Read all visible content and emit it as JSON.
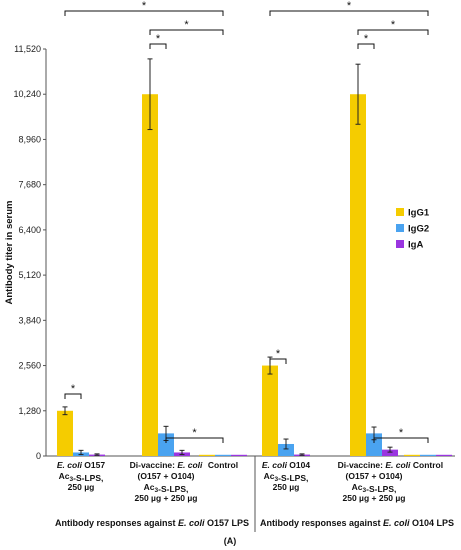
{
  "chart_data": {
    "type": "bar",
    "ylabel": "Antibody titer in serum",
    "ylim": [
      0,
      11520
    ],
    "yticks": [
      "0",
      "1,280",
      "2,560",
      "3,840",
      "5,120",
      "6,400",
      "7,680",
      "8,960",
      "10,240",
      "11,520"
    ],
    "ytick_values": [
      0,
      1280,
      2560,
      3840,
      5120,
      6400,
      7680,
      8960,
      10240,
      11520
    ],
    "panel_label": "(A)",
    "legend_position": "right",
    "grid": false,
    "series": [
      {
        "name": "IgG1",
        "color": "#f5cc00"
      },
      {
        "name": "IgG2",
        "color": "#4aa3f0"
      },
      {
        "name": "IgA",
        "color": "#9a35e0"
      }
    ],
    "groups": [
      {
        "label_parts": [
          {
            "t": "Antibody responses against ",
            "i": false
          },
          {
            "t": "E. coli",
            "i": true
          },
          {
            "t": " O157 LPS",
            "i": false
          }
        ],
        "categories": [
          {
            "lines": [
              [
                {
                  "t": "E. coli",
                  "i": true
                },
                {
                  "t": " O157",
                  "i": false
                }
              ],
              [
                {
                  "t": "Ac",
                  "i": false
                },
                {
                  "t": "3",
                  "sub": true
                },
                {
                  "t": "-S-LPS,",
                  "i": false
                }
              ],
              [
                {
                  "t": "250 µg",
                  "i": false
                }
              ]
            ],
            "values": [
              1280,
              100,
              40
            ],
            "errors": [
              110,
              60,
              20
            ]
          },
          {
            "lines": [
              [
                {
                  "t": "Di-vaccine: ",
                  "i": false
                },
                {
                  "t": "E. coli",
                  "i": true
                }
              ],
              [
                {
                  "t": "(O157 + O104)",
                  "i": false
                }
              ],
              [
                {
                  "t": "Ac",
                  "i": false
                },
                {
                  "t": "3",
                  "sub": true
                },
                {
                  "t": "-S-LPS,",
                  "i": false
                }
              ],
              [
                {
                  "t": "250 µg + 250 µg",
                  "i": false
                }
              ]
            ],
            "values": [
              10240,
              640,
              100
            ],
            "errors": [
              1000,
              200,
              60
            ]
          },
          {
            "lines": [
              [
                {
                  "t": "Control",
                  "i": false
                }
              ]
            ],
            "values": [
              20,
              20,
              20
            ],
            "errors": [
              0,
              0,
              0
            ]
          }
        ]
      },
      {
        "label_parts": [
          {
            "t": "Antibody responses against ",
            "i": false
          },
          {
            "t": "E. coli",
            "i": true
          },
          {
            "t": " O104 LPS",
            "i": false
          }
        ],
        "categories": [
          {
            "lines": [
              [
                {
                  "t": "E. coli",
                  "i": true
                },
                {
                  "t": " O104",
                  "i": false
                }
              ],
              [
                {
                  "t": "Ac",
                  "i": false
                },
                {
                  "t": "3",
                  "sub": true
                },
                {
                  "t": "-S-LPS,",
                  "i": false
                }
              ],
              [
                {
                  "t": "250 µg",
                  "i": false
                }
              ]
            ],
            "values": [
              2560,
              340,
              40
            ],
            "errors": [
              240,
              140,
              20
            ]
          },
          {
            "lines": [
              [
                {
                  "t": "Di-vaccine: ",
                  "i": false
                },
                {
                  "t": "E. coli",
                  "i": true
                }
              ],
              [
                {
                  "t": "(O157 + O104)",
                  "i": false
                }
              ],
              [
                {
                  "t": "Ac",
                  "i": false
                },
                {
                  "t": "3",
                  "sub": true
                },
                {
                  "t": "-S-LPS,",
                  "i": false
                }
              ],
              [
                {
                  "t": "250 µg + 250 µg",
                  "i": false
                }
              ]
            ],
            "values": [
              10240,
              640,
              180
            ],
            "errors": [
              850,
              180,
              70
            ]
          },
          {
            "lines": [
              [
                {
                  "t": "Control",
                  "i": false
                }
              ]
            ],
            "values": [
              20,
              20,
              20
            ],
            "errors": [
              0,
              0,
              0
            ]
          }
        ]
      }
    ],
    "annotations": {
      "symbol": "*",
      "brackets": [
        {
          "from": [
            0,
            0,
            0
          ],
          "to": [
            0,
            0,
            1
          ]
        },
        {
          "from": [
            0,
            1,
            0
          ],
          "to": [
            0,
            1,
            1
          ]
        },
        {
          "from": [
            0,
            1,
            1
          ],
          "to": [
            0,
            2,
            1
          ]
        },
        {
          "from": [
            0,
            1,
            0
          ],
          "to": [
            0,
            2,
            1
          ]
        },
        {
          "from": [
            0,
            0,
            0
          ],
          "to": [
            0,
            2,
            1
          ]
        },
        {
          "from": [
            1,
            0,
            0
          ],
          "to": [
            1,
            0,
            1
          ]
        },
        {
          "from": [
            1,
            1,
            0
          ],
          "to": [
            1,
            1,
            1
          ]
        },
        {
          "from": [
            1,
            1,
            1
          ],
          "to": [
            1,
            2,
            1
          ]
        },
        {
          "from": [
            1,
            1,
            0
          ],
          "to": [
            1,
            2,
            1
          ]
        },
        {
          "from": [
            1,
            0,
            0
          ],
          "to": [
            1,
            2,
            1
          ]
        }
      ]
    }
  }
}
